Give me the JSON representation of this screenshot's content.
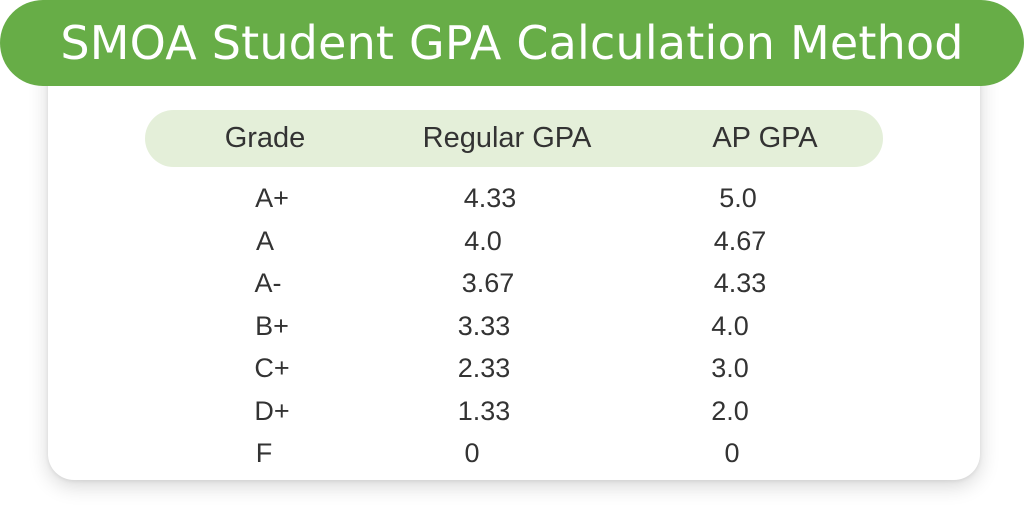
{
  "title": "SMOA Student GPA Calculation Method",
  "table": {
    "headers": [
      "Grade",
      "Regular GPA",
      "AP GPA"
    ],
    "rows": [
      [
        "A+",
        "4.33",
        "5.0"
      ],
      [
        "A",
        "4.0",
        "4.67"
      ],
      [
        "A-",
        "3.67",
        "4.33"
      ],
      [
        "B+",
        "3.33",
        "4.0"
      ],
      [
        "C+",
        "2.33",
        "3.0"
      ],
      [
        "D+",
        "1.33",
        "2.0"
      ],
      [
        "F",
        "0",
        "0"
      ]
    ]
  },
  "colors": {
    "title_bar": "#67ad47",
    "header_bar": "#e4efd9",
    "text": "#333333"
  }
}
